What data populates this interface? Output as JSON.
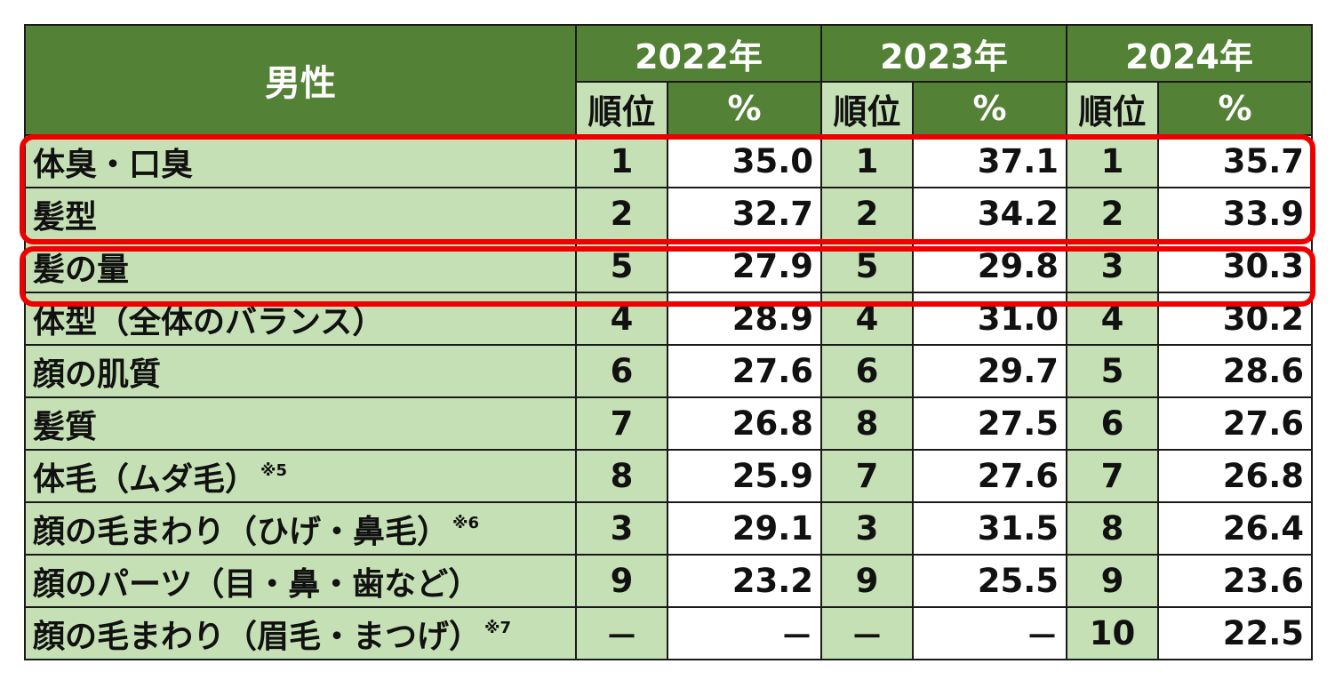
{
  "header": {
    "item_label": "男性",
    "years": [
      "2022年",
      "2023年",
      "2024年"
    ],
    "rank_label": "順位",
    "pct_label": "%"
  },
  "rows": [
    {
      "item": "体臭・口臭",
      "note": "",
      "v": [
        "1",
        "35.0",
        "1",
        "37.1",
        "1",
        "35.7"
      ]
    },
    {
      "item": "髪型",
      "note": "",
      "v": [
        "2",
        "32.7",
        "2",
        "34.2",
        "2",
        "33.9"
      ]
    },
    {
      "item": "髪の量",
      "note": "",
      "v": [
        "5",
        "27.9",
        "5",
        "29.8",
        "3",
        "30.3"
      ]
    },
    {
      "item": "体型（全体のバランス）",
      "note": "",
      "v": [
        "4",
        "28.9",
        "4",
        "31.0",
        "4",
        "30.2"
      ]
    },
    {
      "item": "顔の肌質",
      "note": "",
      "v": [
        "6",
        "27.6",
        "6",
        "29.7",
        "5",
        "28.6"
      ]
    },
    {
      "item": "髪質",
      "note": "",
      "v": [
        "7",
        "26.8",
        "8",
        "27.5",
        "6",
        "27.6"
      ]
    },
    {
      "item": "体毛（ムダ毛）",
      "note": "※5",
      "v": [
        "8",
        "25.9",
        "7",
        "27.6",
        "7",
        "26.8"
      ]
    },
    {
      "item": "顔の毛まわり（ひげ・鼻毛）",
      "note": "※6",
      "v": [
        "3",
        "29.1",
        "3",
        "31.5",
        "8",
        "26.4"
      ]
    },
    {
      "item": "顔のパーツ（目・鼻・歯など）",
      "note": "",
      "v": [
        "9",
        "23.2",
        "9",
        "25.5",
        "9",
        "23.6"
      ]
    },
    {
      "item": "顔の毛まわり（眉毛・まつげ）",
      "note": "※7",
      "v": [
        "－",
        "－",
        "－",
        "－",
        "10",
        "22.5"
      ]
    }
  ],
  "highlight_color": "#ee0000",
  "header_color": "#538135",
  "cell_color": "#c5e0b4"
}
